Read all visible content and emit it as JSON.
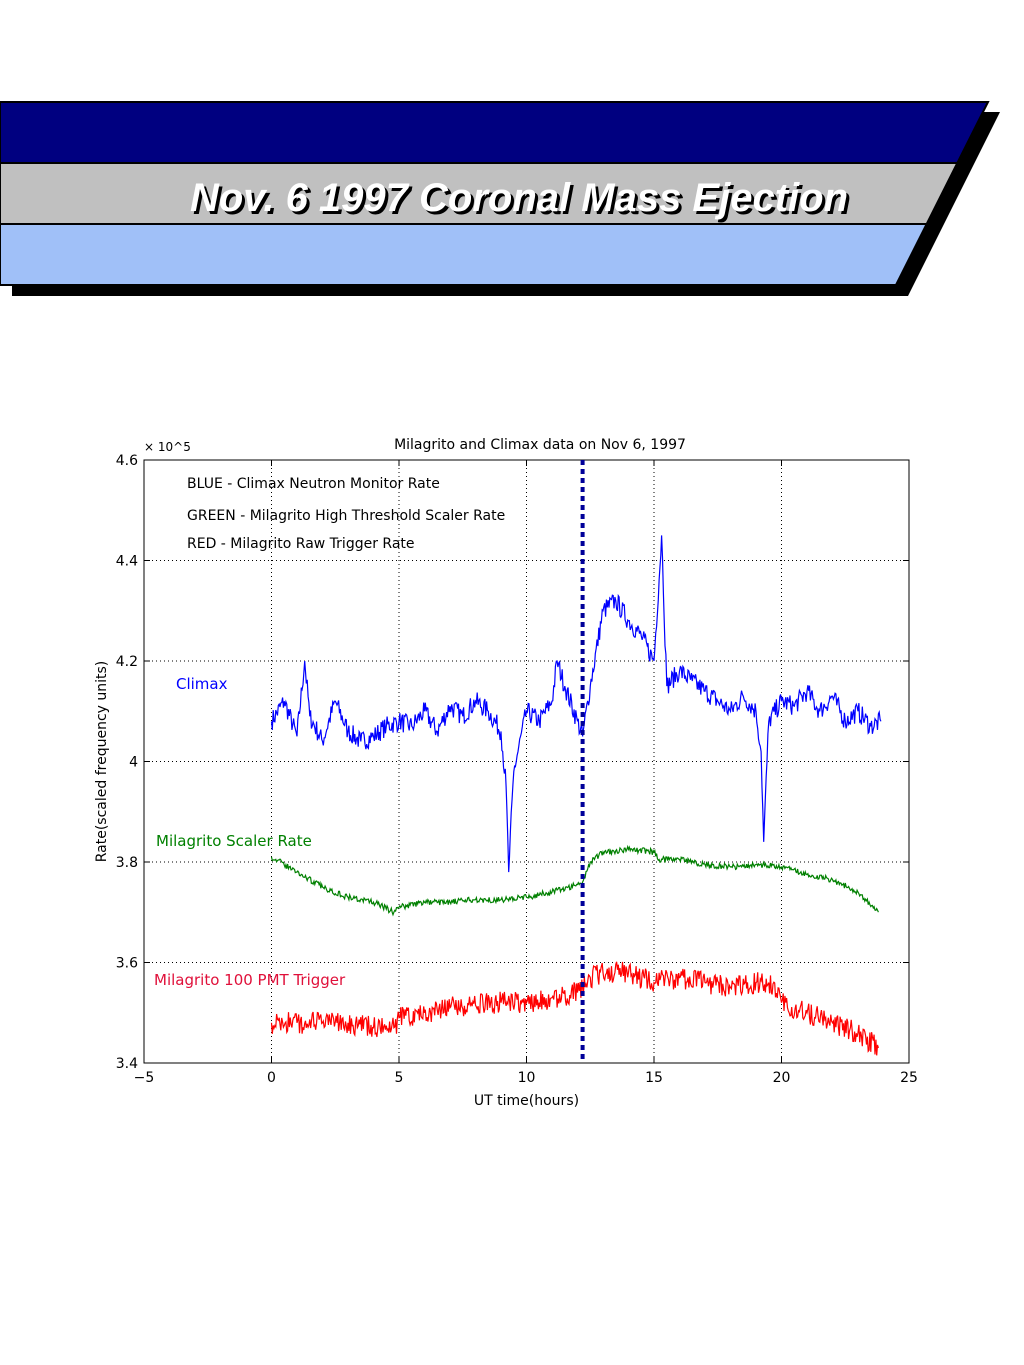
{
  "slide": {
    "title": "Nov. 6 1997 Coronal Mass Ejection",
    "colors": {
      "band_top": "#000080",
      "band_middle": "#c0c0c0",
      "band_bottom": "#a0c0f8",
      "shadow": "#000000"
    }
  },
  "chart_data": {
    "type": "line",
    "title": "Milagrito and Climax data  on Nov 6, 1997",
    "xlabel": "UT time(hours)",
    "ylabel": "Rate(scaled frequency units)",
    "y_multiplier": "× 10^5",
    "xlim": [
      -5,
      25
    ],
    "ylim": [
      3.4,
      4.6
    ],
    "xticks": [
      -5,
      0,
      5,
      10,
      15,
      20,
      25
    ],
    "yticks": [
      3.4,
      3.6,
      3.8,
      4.0,
      4.2,
      4.4,
      4.6
    ],
    "xtick_labels": [
      "−5",
      "0",
      "5",
      "10",
      "15",
      "20",
      "25"
    ],
    "ytick_labels": [
      "3.4",
      "3.6",
      "3.8",
      "4",
      "4.2",
      "4.4",
      "4.6"
    ],
    "grid": true,
    "legend_lines": [
      "BLUE - Climax Neutron Monitor Rate",
      "GREEN - Milagrito High Threshold Scaler Rate",
      "RED - Milagrito Raw Trigger Rate"
    ],
    "event_marker_x": 12.2,
    "series": [
      {
        "name": "Climax",
        "color": "#0000ff",
        "x": [
          0,
          0.5,
          1,
          1.3,
          1.5,
          2,
          2.5,
          3,
          3.5,
          4,
          4.5,
          5,
          5.5,
          6,
          6.5,
          7,
          7.5,
          8,
          8.5,
          9,
          9.2,
          9.3,
          9.5,
          10,
          10.5,
          11,
          11.2,
          11.5,
          12,
          12.2,
          12.5,
          13,
          13.5,
          14,
          14.5,
          15,
          15.3,
          15.5,
          16,
          16.5,
          17,
          17.5,
          18,
          18.5,
          19,
          19.2,
          19.3,
          19.5,
          20,
          20.5,
          21,
          21.5,
          22,
          22.5,
          23,
          23.5,
          23.9
        ],
        "y": [
          4.08,
          4.12,
          4.05,
          4.2,
          4.09,
          4.04,
          4.12,
          4.06,
          4.04,
          4.05,
          4.07,
          4.08,
          4.07,
          4.1,
          4.06,
          4.11,
          4.09,
          4.12,
          4.1,
          4.06,
          3.95,
          3.78,
          3.98,
          4.1,
          4.08,
          4.12,
          4.2,
          4.15,
          4.08,
          4.05,
          4.15,
          4.3,
          4.32,
          4.28,
          4.25,
          4.2,
          4.45,
          4.15,
          4.18,
          4.16,
          4.14,
          4.12,
          4.1,
          4.13,
          4.1,
          4.02,
          3.84,
          4.08,
          4.12,
          4.11,
          4.14,
          4.1,
          4.13,
          4.08,
          4.1,
          4.07,
          4.08
        ]
      },
      {
        "name": "Milagrito Scaler Rate",
        "color": "#008000",
        "x": [
          0,
          1,
          2,
          3,
          4,
          4.8,
          5,
          6,
          7,
          8,
          9,
          10,
          11,
          12,
          12.2,
          12.5,
          13,
          14,
          15,
          15.2,
          16,
          17,
          18,
          19,
          20,
          21,
          22,
          23,
          23.8
        ],
        "y": [
          3.81,
          3.78,
          3.75,
          3.73,
          3.72,
          3.7,
          3.71,
          3.72,
          3.72,
          3.725,
          3.725,
          3.73,
          3.74,
          3.755,
          3.76,
          3.8,
          3.82,
          3.825,
          3.82,
          3.805,
          3.805,
          3.795,
          3.79,
          3.795,
          3.79,
          3.775,
          3.765,
          3.74,
          3.7
        ]
      },
      {
        "name": "Milagrito 100 PMT Trigger",
        "color": "#ff0000",
        "x": [
          0,
          1,
          2,
          3,
          4,
          4.8,
          5,
          6,
          7,
          8,
          9,
          10,
          11,
          12,
          12.2,
          12.5,
          13,
          14,
          15,
          16,
          17,
          18,
          19,
          19.5,
          20,
          21,
          22,
          23,
          23.8
        ],
        "y": [
          3.48,
          3.48,
          3.48,
          3.48,
          3.47,
          3.47,
          3.49,
          3.5,
          3.51,
          3.515,
          3.52,
          3.52,
          3.53,
          3.54,
          3.55,
          3.57,
          3.58,
          3.58,
          3.56,
          3.57,
          3.56,
          3.55,
          3.56,
          3.56,
          3.52,
          3.5,
          3.48,
          3.46,
          3.43
        ]
      }
    ]
  }
}
